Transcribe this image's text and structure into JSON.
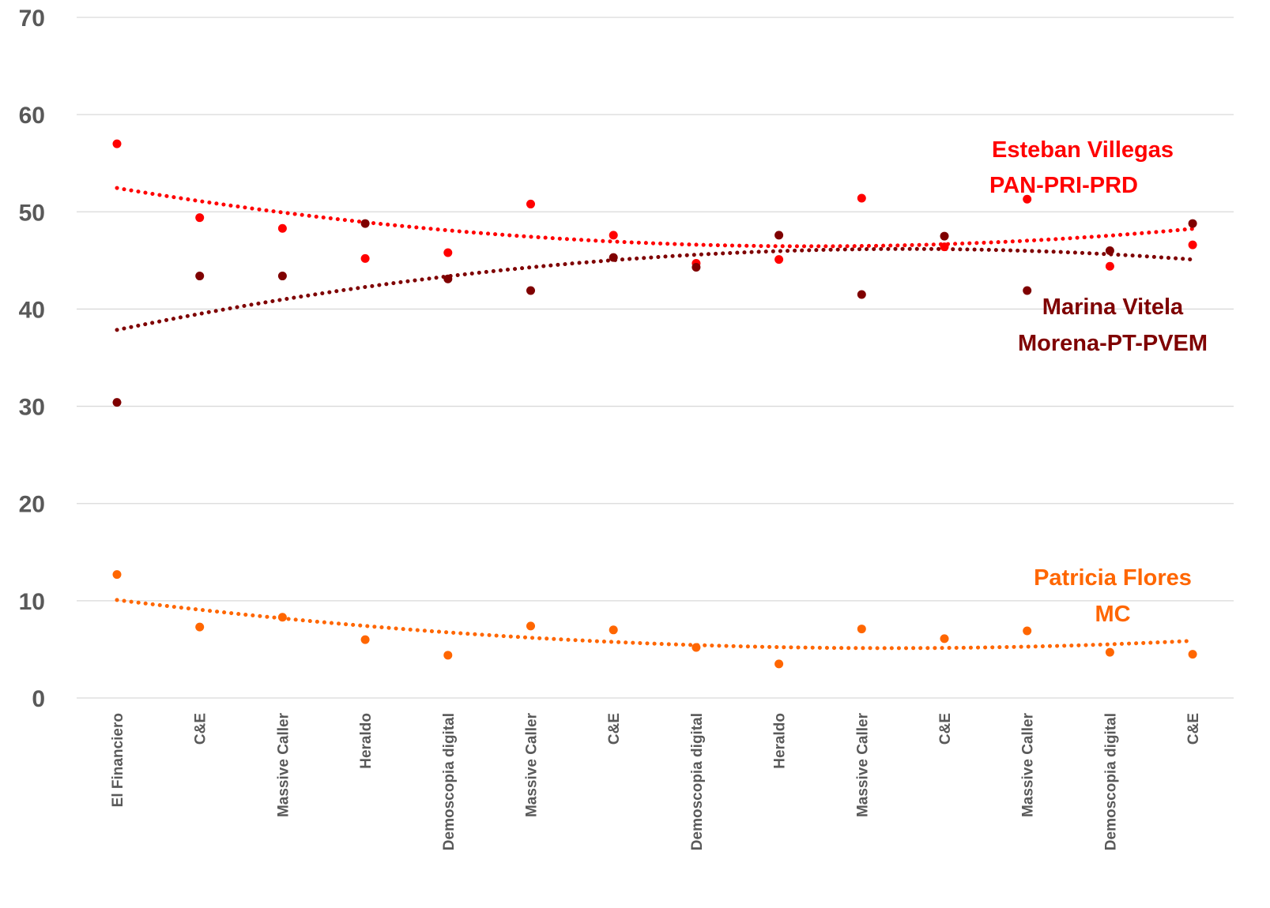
{
  "chart_data": {
    "type": "scatter",
    "title": "",
    "xlabel": "",
    "ylabel": "",
    "ylim": [
      0,
      70
    ],
    "yticks": [
      "0",
      "10",
      "20",
      "30",
      "40",
      "50",
      "60",
      "70"
    ],
    "grid": true,
    "legend": "none",
    "categories": [
      "El Financiero",
      "C&E",
      "Massive Caller",
      "Heraldo",
      "Demoscopia digital",
      "Massive Caller",
      "C&E",
      "Demoscopia digital",
      "Heraldo",
      "Massive Caller",
      "C&E",
      "Massive Caller",
      "Demoscopia digital",
      "C&E"
    ],
    "series": [
      {
        "label_lines": [
          "Esteban Villegas",
          "PAN-PRI-PRD"
        ],
        "color": "#ff0000",
        "values": [
          57.0,
          49.4,
          48.3,
          45.2,
          45.8,
          50.8,
          47.6,
          44.7,
          45.1,
          51.4,
          46.4,
          51.3,
          44.4,
          46.6
        ],
        "trendline": "polynomial (dotted)"
      },
      {
        "label_lines": [
          "Marina Vitela",
          "Morena-PT-PVEM"
        ],
        "color": "#7f0000",
        "values": [
          30.4,
          43.4,
          43.4,
          48.8,
          43.1,
          41.9,
          45.3,
          44.3,
          47.6,
          41.5,
          47.5,
          41.9,
          46.0,
          48.8
        ],
        "trendline": "polynomial (dotted)"
      },
      {
        "label_lines": [
          "Patricia Flores",
          "MC"
        ],
        "color": "#ff6600",
        "values": [
          12.7,
          7.3,
          8.3,
          6.0,
          4.4,
          7.4,
          7.0,
          5.2,
          3.5,
          7.1,
          6.1,
          6.9,
          4.7,
          4.5
        ],
        "trendline": "polynomial (dotted)"
      }
    ]
  }
}
